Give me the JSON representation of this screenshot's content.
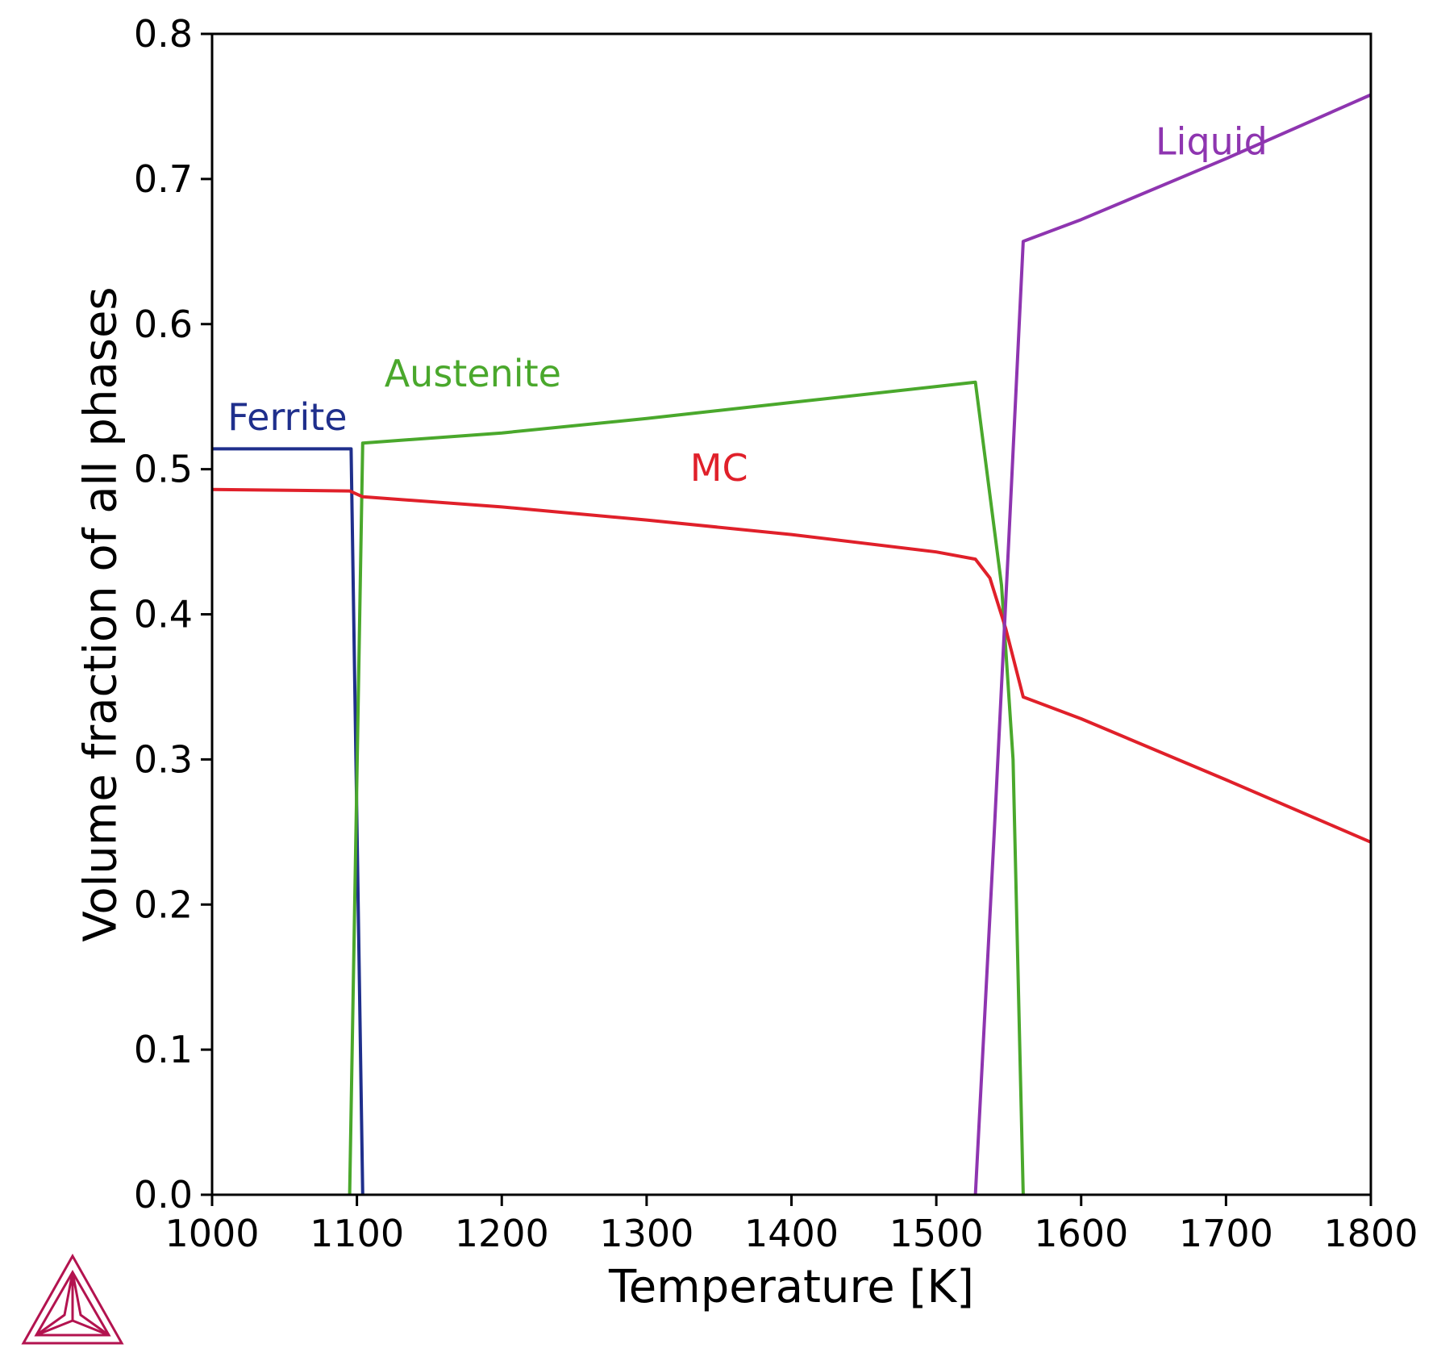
{
  "chart_data": {
    "type": "line",
    "title": "",
    "xlabel": "Temperature [K]",
    "ylabel": "Volume fraction of all phases",
    "xlim": [
      1000,
      1800
    ],
    "ylim": [
      0.0,
      0.8
    ],
    "xticks": [
      1000,
      1100,
      1200,
      1300,
      1400,
      1500,
      1600,
      1700,
      1800
    ],
    "yticks": [
      0.0,
      0.1,
      0.2,
      0.3,
      0.4,
      0.5,
      0.6,
      0.7,
      0.8
    ],
    "xtick_labels": [
      "1000",
      "1100",
      "1200",
      "1300",
      "1400",
      "1500",
      "1600",
      "1700",
      "1800"
    ],
    "ytick_labels": [
      "0.0",
      "0.1",
      "0.2",
      "0.3",
      "0.4",
      "0.5",
      "0.6",
      "0.7",
      "0.8"
    ],
    "grid": false,
    "legend": "inline labels",
    "series": [
      {
        "name": "Ferrite",
        "color": "#1f2f8c",
        "label_at": {
          "x": 1052,
          "y": 0.527
        },
        "points": [
          [
            1000,
            0.514
          ],
          [
            1096,
            0.514
          ],
          [
            1104,
            0.0
          ]
        ]
      },
      {
        "name": "Austenite",
        "color": "#4aa82c",
        "label_at": {
          "x": 1180,
          "y": 0.557
        },
        "points": [
          [
            1095,
            0.0
          ],
          [
            1104,
            0.518
          ],
          [
            1200,
            0.525
          ],
          [
            1300,
            0.535
          ],
          [
            1400,
            0.546
          ],
          [
            1500,
            0.557
          ],
          [
            1527,
            0.56
          ],
          [
            1545,
            0.42
          ],
          [
            1553,
            0.3
          ],
          [
            1560,
            0.0
          ]
        ]
      },
      {
        "name": "MC",
        "color": "#e0202a",
        "label_at": {
          "x": 1350,
          "y": 0.492
        },
        "points": [
          [
            1000,
            0.486
          ],
          [
            1095,
            0.485
          ],
          [
            1104,
            0.481
          ],
          [
            1200,
            0.474
          ],
          [
            1300,
            0.465
          ],
          [
            1400,
            0.455
          ],
          [
            1500,
            0.443
          ],
          [
            1527,
            0.438
          ],
          [
            1537,
            0.425
          ],
          [
            1548,
            0.39
          ],
          [
            1560,
            0.343
          ],
          [
            1600,
            0.328
          ],
          [
            1700,
            0.286
          ],
          [
            1800,
            0.243
          ]
        ]
      },
      {
        "name": "Liquid",
        "color": "#8e35b0",
        "label_at": {
          "x": 1690,
          "y": 0.717
        },
        "points": [
          [
            1527,
            0.0
          ],
          [
            1540,
            0.25
          ],
          [
            1550,
            0.45
          ],
          [
            1560,
            0.657
          ],
          [
            1600,
            0.672
          ],
          [
            1700,
            0.714
          ],
          [
            1800,
            0.758
          ]
        ]
      }
    ]
  },
  "logo": {
    "name": "triangle-logo",
    "color": "#b3134f"
  }
}
